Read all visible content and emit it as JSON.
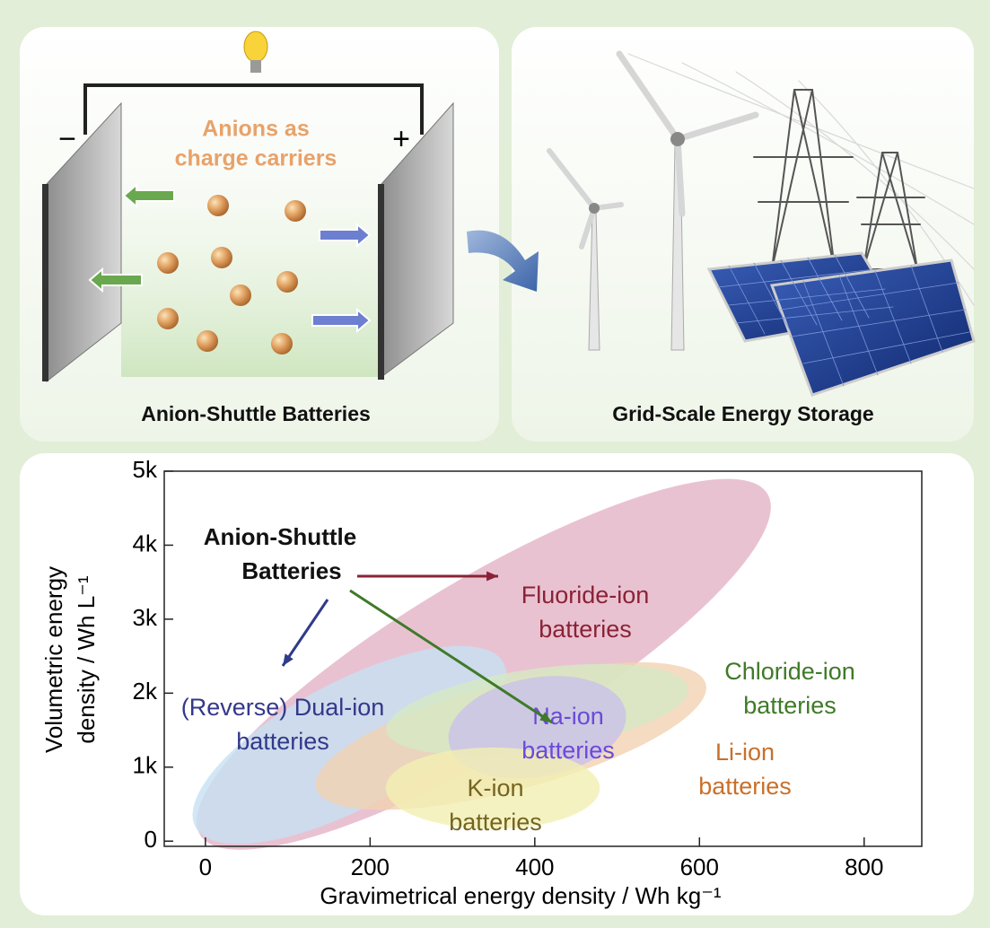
{
  "panels": [
    {
      "caption": "Anion-Shuttle Batteries",
      "note": [
        "Anions as",
        "charge carriers"
      ],
      "minus": "−",
      "plus": "+"
    },
    {
      "caption": "Grid-Scale Energy Storage"
    }
  ],
  "chart_data": {
    "type": "region",
    "xlabel": "Gravimetrical energy density / Wh kg⁻¹",
    "ylabel": [
      "Volumetric energy",
      "density / Wh L⁻¹"
    ],
    "annotation": [
      "Anion-Shuttle",
      "Batteries"
    ],
    "xlim": [
      -50,
      870
    ],
    "ylim": [
      -70,
      5000
    ],
    "xticks": [
      0,
      200,
      400,
      600,
      800
    ],
    "yticks": [
      0,
      {
        "value": 1000,
        "label": "1k"
      },
      {
        "value": 2000,
        "label": "2k"
      },
      {
        "value": 3000,
        "label": "3k"
      },
      {
        "value": 4000,
        "label": "4k"
      },
      {
        "value": 5000,
        "label": "5k"
      }
    ],
    "series": [
      {
        "name": [
          "Fluoride-ion",
          "batteries"
        ],
        "color": "#e4b3c6",
        "text_color": "#8a2236",
        "x": 338,
        "y": 2390,
        "rx": 402,
        "ry": 1150,
        "angle": -31
      },
      {
        "name": [
          "(Reverse) Dual-ion",
          "batteries"
        ],
        "color": "#c5e1f2",
        "text_color": "#34388a",
        "x": 175,
        "y": 1300,
        "rx": 212,
        "ry": 850,
        "angle": -28
      },
      {
        "name": [
          "Li-ion",
          "batteries"
        ],
        "color": "#f1d2b2",
        "text_color": "#c8702a",
        "x": 371,
        "y": 1420,
        "rx": 245,
        "ry": 730,
        "angle": -15
      },
      {
        "name": [
          "Chloride-ion",
          "batteries"
        ],
        "color": "#d6e8c4",
        "text_color": "#3f7a28",
        "x": 403,
        "y": 1780,
        "rx": 185,
        "ry": 550,
        "angle": -8
      },
      {
        "name": [
          "Na-ion",
          "batteries"
        ],
        "color": "#c9c2ea",
        "text_color": "#6a4ad8",
        "x": 403,
        "y": 1540,
        "rx": 109,
        "ry": 670,
        "angle": -10
      },
      {
        "name": [
          "K-ion",
          "batteries"
        ],
        "color": "#f3efb3",
        "text_color": "#746420",
        "x": 349,
        "y": 716,
        "rx": 130,
        "ry": 550,
        "angle": 0
      }
    ]
  }
}
